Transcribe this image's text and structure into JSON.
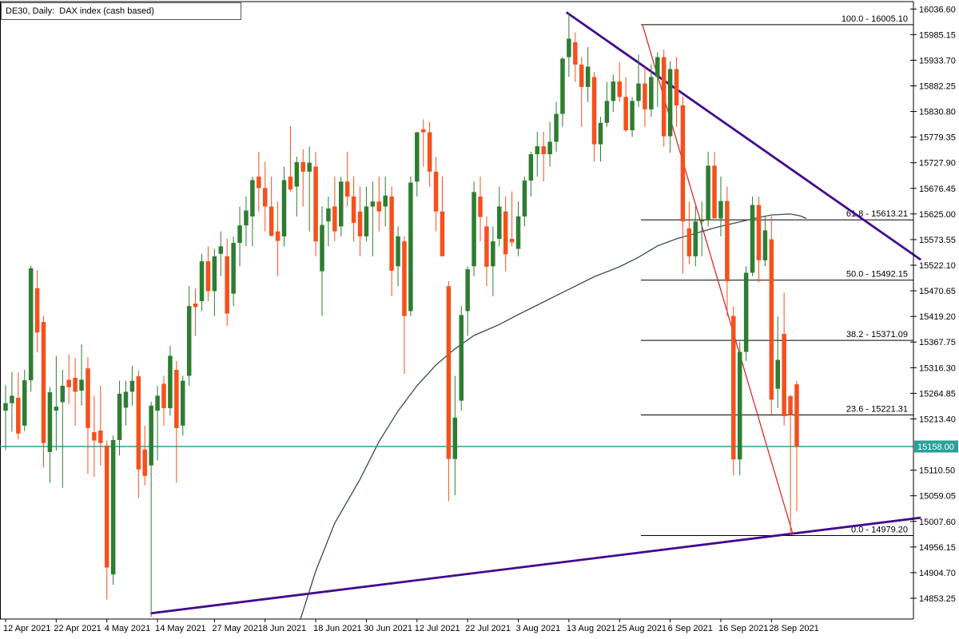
{
  "window": {
    "title": "DE30, Daily:  DAX index (cash based)",
    "symbol": "DE30",
    "timeframe": "Daily",
    "description": "DAX index (cash based)"
  },
  "colors": {
    "background": "#ffffff",
    "bull": "#2e7d32",
    "bear": "#f4511e",
    "trendline": "#43098e",
    "signal_line": "#d92b2b",
    "moving_average": "#3a4a52",
    "fib_line": "#000000",
    "axis_line": "#000000",
    "axis_text": "#000000",
    "current_price": "#26a299",
    "current_price_text": "#ffffff"
  },
  "chart_data": {
    "type": "candlestick",
    "title": "DE30, Daily:  DAX index (cash based)",
    "symbol": "DE30",
    "timeframe": "Daily",
    "current_price": 15158.0,
    "current_price_label": "15158.00",
    "ylim": [
      14812,
      16052
    ],
    "grid": false,
    "y_axis_ticks": [
      "16036.60",
      "15985.15",
      "15933.70",
      "15882.25",
      "15830.80",
      "15779.35",
      "15727.90",
      "15676.45",
      "15625.00",
      "15573.55",
      "15522.10",
      "15470.65",
      "15419.20",
      "15367.75",
      "15316.30",
      "15264.85",
      "15213.40",
      "15110.50",
      "15059.05",
      "15007.60",
      "14956.15",
      "14904.70",
      "14853.25"
    ],
    "x_axis_ticks": {
      "labels": [
        "12 Apr 2021",
        "22 Apr 2021",
        "4 May 2021",
        "14 May 2021",
        "27 May 2021",
        "8 Jun 2021",
        "18 Jun 2021",
        "30 Jun 2021",
        "12 Jul 2021",
        "22 Jul 2021",
        "3 Aug 2021",
        "13 Aug 2021",
        "25 Aug 2021",
        "6 Sep 2021",
        "16 Sep 2021",
        "28 Sep 2021"
      ],
      "indices": [
        0,
        8,
        16,
        24,
        33,
        41,
        49,
        57,
        65,
        73,
        81,
        89,
        97,
        105,
        113,
        121
      ]
    },
    "fibonacci": {
      "levels": [
        {
          "label": "100.0 - 16005.10",
          "level": 100.0,
          "price": 16005.1
        },
        {
          "label": "61.8 - 15613.21",
          "level": 61.8,
          "price": 15613.21
        },
        {
          "label": "50.0 - 15492.15",
          "level": 50.0,
          "price": 15492.15
        },
        {
          "label": "38.2 - 15371.09",
          "level": 38.2,
          "price": 15371.09
        },
        {
          "label": "23.6 - 15221.31",
          "level": 23.6,
          "price": 15221.31
        },
        {
          "label": "0.0 - 14979.20",
          "level": 0.0,
          "price": 14979.2
        }
      ]
    },
    "overlays": {
      "trendlines": [
        {
          "name": "descending-resistance",
          "color_key": "trendline",
          "width": 2.8,
          "from": [
            88.6,
            16030
          ],
          "to": [
            144.6,
            15533
          ]
        },
        {
          "name": "ascending-support",
          "color_key": "trendline",
          "width": 2.8,
          "from": [
            22.9,
            14823
          ],
          "to": [
            144.6,
            15015
          ]
        },
        {
          "name": "breakdown-line",
          "color_key": "signal_line",
          "width": 1.3,
          "from": [
            100.6,
            16006
          ],
          "to": [
            124.4,
            14981
          ]
        }
      ],
      "moving_average": {
        "points": [
          [
            46.6,
            14812
          ],
          [
            49,
            14908
          ],
          [
            52,
            15004
          ],
          [
            56,
            15092
          ],
          [
            59,
            15168
          ],
          [
            62,
            15229
          ],
          [
            65,
            15280
          ],
          [
            68,
            15322
          ],
          [
            71,
            15354
          ],
          [
            74,
            15381
          ],
          [
            78,
            15403
          ],
          [
            81,
            15423
          ],
          [
            84,
            15442
          ],
          [
            87,
            15461
          ],
          [
            90,
            15480
          ],
          [
            93,
            15499
          ],
          [
            97,
            15519
          ],
          [
            100,
            15538
          ],
          [
            103,
            15561
          ],
          [
            106,
            15575
          ],
          [
            109,
            15586
          ],
          [
            112,
            15597
          ],
          [
            116,
            15609
          ],
          [
            119,
            15618
          ],
          [
            121,
            15623
          ],
          [
            124,
            15625
          ],
          [
            125.6,
            15621
          ],
          [
            126.5,
            15616
          ]
        ]
      }
    },
    "ohlc_estimated": [
      [
        15230,
        15281,
        15151,
        15245
      ],
      [
        15245,
        15308,
        15188,
        15260
      ],
      [
        15256,
        15307,
        15172,
        15184
      ],
      [
        15200,
        15312,
        15189,
        15291
      ],
      [
        15291,
        15521,
        15268,
        15516
      ],
      [
        15476,
        15512,
        15347,
        15387
      ],
      [
        15408,
        15420,
        15116,
        15165
      ],
      [
        15147,
        15277,
        15085,
        15267
      ],
      [
        15230,
        15340,
        15150,
        15238
      ],
      [
        15247,
        15312,
        15075,
        15280
      ],
      [
        15292,
        15343,
        15243,
        15277
      ],
      [
        15296,
        15336,
        15200,
        15268
      ],
      [
        15270,
        15363,
        15240,
        15292
      ],
      [
        15315,
        15337,
        15103,
        15195
      ],
      [
        15187,
        15260,
        15097,
        15170
      ],
      [
        15190,
        15280,
        15120,
        15165
      ],
      [
        15160,
        15170,
        14851,
        14915
      ],
      [
        14901,
        15180,
        14880,
        15171
      ],
      [
        15171,
        15290,
        15140,
        15264
      ],
      [
        15236,
        15290,
        15200,
        15268
      ],
      [
        15268,
        15320,
        15240,
        15290
      ],
      [
        15299,
        15310,
        15055,
        15112
      ],
      [
        15152,
        15200,
        15080,
        15099
      ],
      [
        15120,
        15248,
        14816,
        15240
      ],
      [
        15230,
        15280,
        15130,
        15260
      ],
      [
        15284,
        15300,
        15200,
        15235
      ],
      [
        15235,
        15360,
        15220,
        15340
      ],
      [
        15312,
        15330,
        15085,
        15195
      ],
      [
        15200,
        15300,
        15180,
        15290
      ],
      [
        15300,
        15480,
        15280,
        15440
      ],
      [
        15445,
        15475,
        15380,
        15438
      ],
      [
        15450,
        15545,
        15430,
        15530
      ],
      [
        15530,
        15560,
        15450,
        15470
      ],
      [
        15470,
        15555,
        15420,
        15540
      ],
      [
        15545,
        15590,
        15500,
        15560
      ],
      [
        15540,
        15575,
        15400,
        15425
      ],
      [
        15465,
        15580,
        15440,
        15567
      ],
      [
        15567,
        15640,
        15520,
        15602
      ],
      [
        15602,
        15660,
        15560,
        15632
      ],
      [
        15620,
        15700,
        15560,
        15693
      ],
      [
        15700,
        15750,
        15630,
        15677
      ],
      [
        15677,
        15730,
        15590,
        15640
      ],
      [
        15640,
        15700,
        15580,
        15581
      ],
      [
        15590,
        15650,
        15500,
        15571
      ],
      [
        15580,
        15720,
        15560,
        15693
      ],
      [
        15700,
        15802,
        15670,
        15674
      ],
      [
        15680,
        15740,
        15620,
        15729
      ],
      [
        15729,
        15755,
        15640,
        15710
      ],
      [
        15710,
        15760,
        15590,
        15728
      ],
      [
        15720,
        15750,
        15540,
        15570
      ],
      [
        15510,
        15640,
        15420,
        15603
      ],
      [
        15610,
        15660,
        15560,
        15636
      ],
      [
        15640,
        15700,
        15570,
        15590
      ],
      [
        15600,
        15700,
        15580,
        15690
      ],
      [
        15690,
        15750,
        15640,
        15660
      ],
      [
        15660,
        15700,
        15570,
        15607
      ],
      [
        15630,
        15680,
        15540,
        15580
      ],
      [
        15580,
        15680,
        15570,
        15640
      ],
      [
        15640,
        15690,
        15540,
        15650
      ],
      [
        15650,
        15700,
        15590,
        15630
      ],
      [
        15640,
        15700,
        15600,
        15662
      ],
      [
        15660,
        15680,
        15460,
        15511
      ],
      [
        15520,
        15600,
        15480,
        15580
      ],
      [
        15570,
        15580,
        15304,
        15420
      ],
      [
        15430,
        15700,
        15420,
        15688
      ],
      [
        15690,
        15790,
        15660,
        15789
      ],
      [
        15795,
        15815,
        15720,
        15789
      ],
      [
        15789,
        15810,
        15680,
        15710
      ],
      [
        15710,
        15740,
        15590,
        15630
      ],
      [
        15630,
        15700,
        15540,
        15540
      ],
      [
        15480,
        15490,
        15048,
        15133
      ],
      [
        15133,
        15300,
        15060,
        15216
      ],
      [
        15250,
        15440,
        15230,
        15422
      ],
      [
        15430,
        15520,
        15380,
        15514
      ],
      [
        15520,
        15690,
        15500,
        15669
      ],
      [
        15660,
        15700,
        15570,
        15619
      ],
      [
        15600,
        15620,
        15480,
        15519
      ],
      [
        15520,
        15600,
        15460,
        15570
      ],
      [
        15575,
        15680,
        15560,
        15640
      ],
      [
        15630,
        15660,
        15510,
        15544
      ],
      [
        15575,
        15670,
        15560,
        15568
      ],
      [
        15555,
        15650,
        15540,
        15620
      ],
      [
        15620,
        15700,
        15600,
        15692
      ],
      [
        15692,
        15750,
        15660,
        15745
      ],
      [
        15745,
        15790,
        15700,
        15761
      ],
      [
        15761,
        15790,
        15690,
        15745
      ],
      [
        15745,
        15810,
        15720,
        15770
      ],
      [
        15770,
        15850,
        15750,
        15826
      ],
      [
        15826,
        15940,
        15800,
        15937
      ],
      [
        15940,
        16028,
        15900,
        15977
      ],
      [
        15970,
        15990,
        15890,
        15925
      ],
      [
        15925,
        15940,
        15800,
        15880
      ],
      [
        15880,
        15960,
        15850,
        15921
      ],
      [
        15900,
        15910,
        15730,
        15765
      ],
      [
        15765,
        15820,
        15730,
        15808
      ],
      [
        15808,
        15890,
        15800,
        15852
      ],
      [
        15852,
        15905,
        15830,
        15891
      ],
      [
        15891,
        15930,
        15850,
        15860
      ],
      [
        15860,
        15900,
        15790,
        15793
      ],
      [
        15793,
        15860,
        15780,
        15852
      ],
      [
        15852,
        15945,
        15840,
        15887
      ],
      [
        15887,
        15920,
        15800,
        15835
      ],
      [
        15835,
        15925,
        15820,
        15900
      ],
      [
        15900,
        15950,
        15840,
        15940
      ],
      [
        15940,
        15955,
        15760,
        15781
      ],
      [
        15781,
        15932,
        15748,
        15916
      ],
      [
        15916,
        15940,
        15800,
        15843
      ],
      [
        15843,
        15860,
        15505,
        15610
      ],
      [
        15596,
        15650,
        15524,
        15540
      ],
      [
        15540,
        15640,
        15520,
        15610
      ],
      [
        15610,
        15650,
        15540,
        15612
      ],
      [
        15612,
        15750,
        15600,
        15722
      ],
      [
        15722,
        15750,
        15616,
        15616
      ],
      [
        15616,
        15700,
        15580,
        15651
      ],
      [
        15651,
        15680,
        15420,
        15490
      ],
      [
        15420,
        15440,
        15100,
        15132
      ],
      [
        15132,
        15368,
        15100,
        15348
      ],
      [
        15348,
        15520,
        15330,
        15507
      ],
      [
        15507,
        15660,
        15500,
        15643
      ],
      [
        15643,
        15660,
        15488,
        15532
      ],
      [
        15532,
        15620,
        15520,
        15592
      ],
      [
        15574,
        15620,
        15219,
        15252
      ],
      [
        15274,
        15419,
        15235,
        15332
      ],
      [
        15384,
        15467,
        15200,
        15219
      ],
      [
        15259,
        15262,
        14980,
        15221
      ],
      [
        15283,
        15290,
        15028,
        15158
      ]
    ]
  }
}
